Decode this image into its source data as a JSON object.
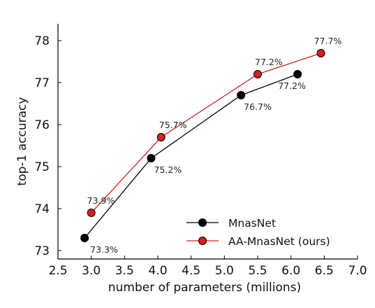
{
  "chart_data": {
    "type": "line",
    "xlabel": "number of parameters (millions)",
    "ylabel": "top-1 accuracy",
    "xlim": [
      2.5,
      7.0
    ],
    "ylim": [
      72.8,
      78.4
    ],
    "x_ticks": [
      "2.5",
      "3.0",
      "3.5",
      "4.0",
      "4.5",
      "5.0",
      "5.5",
      "6.0",
      "6.5",
      "7.0"
    ],
    "y_ticks": [
      "73",
      "74",
      "75",
      "76",
      "77",
      "78"
    ],
    "grid": false,
    "legend_position": "lower-right",
    "series": [
      {
        "name": "MnasNet",
        "color": "#000000",
        "marker_color": "#000000",
        "points": [
          {
            "x": 2.9,
            "y": 73.3,
            "label": "73.3%"
          },
          {
            "x": 3.9,
            "y": 75.2,
            "label": "75.2%"
          },
          {
            "x": 5.25,
            "y": 76.7,
            "label": "76.7%"
          },
          {
            "x": 6.1,
            "y": 77.2,
            "label": "77.2%"
          }
        ]
      },
      {
        "name": "AA-MnasNet (ours)",
        "color": "#d42020",
        "marker_color": "#d42020",
        "points": [
          {
            "x": 3.0,
            "y": 73.9,
            "label": "73.9%"
          },
          {
            "x": 4.05,
            "y": 75.7,
            "label": "75.7%"
          },
          {
            "x": 5.5,
            "y": 77.2,
            "label": "77.2%"
          },
          {
            "x": 6.45,
            "y": 77.7,
            "label": "77.7%"
          }
        ]
      }
    ]
  }
}
